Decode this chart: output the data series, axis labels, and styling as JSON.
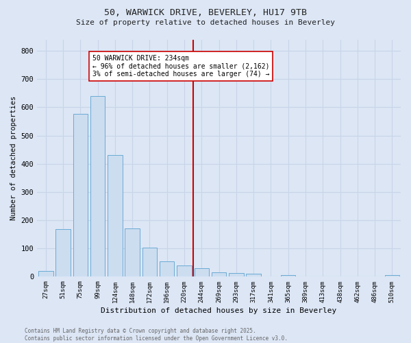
{
  "title1": "50, WARWICK DRIVE, BEVERLEY, HU17 9TB",
  "title2": "Size of property relative to detached houses in Beverley",
  "xlabel": "Distribution of detached houses by size in Beverley",
  "ylabel": "Number of detached properties",
  "bar_labels": [
    "27sqm",
    "51sqm",
    "75sqm",
    "99sqm",
    "124sqm",
    "148sqm",
    "172sqm",
    "196sqm",
    "220sqm",
    "244sqm",
    "269sqm",
    "293sqm",
    "317sqm",
    "341sqm",
    "365sqm",
    "389sqm",
    "413sqm",
    "438sqm",
    "462sqm",
    "486sqm",
    "510sqm"
  ],
  "bar_values": [
    20,
    168,
    577,
    640,
    430,
    170,
    103,
    55,
    40,
    30,
    15,
    13,
    10,
    0,
    5,
    2,
    0,
    0,
    0,
    0,
    5
  ],
  "bar_color": "#ccddf0",
  "bar_edge_color": "#6aaad4",
  "vline_color": "#cc0000",
  "annotation_text": "50 WARWICK DRIVE: 234sqm\n← 96% of detached houses are smaller (2,162)\n3% of semi-detached houses are larger (74) →",
  "annotation_border_color": "#cc0000",
  "annotation_box_color": "#ffffff",
  "grid_color": "#c8d4e8",
  "background_color": "#dce6f5",
  "footer_text": "Contains HM Land Registry data © Crown copyright and database right 2025.\nContains public sector information licensed under the Open Government Licence v3.0.",
  "ylim": [
    0,
    840
  ],
  "yticks": [
    0,
    100,
    200,
    300,
    400,
    500,
    600,
    700,
    800
  ]
}
